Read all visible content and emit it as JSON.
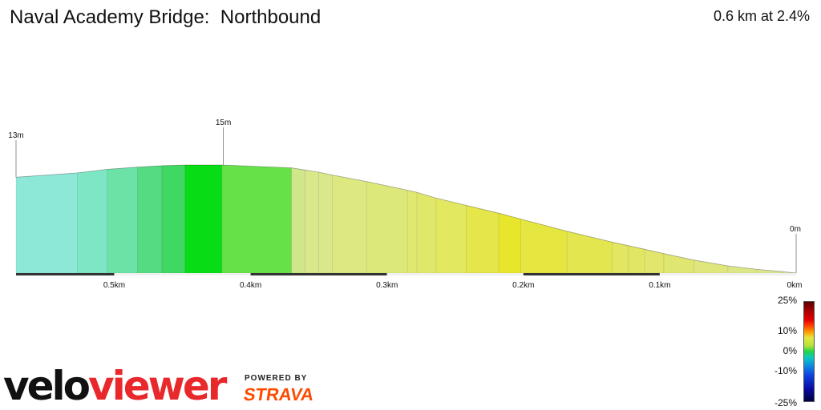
{
  "header": {
    "title": "Naval Academy Bridge:  Northbound",
    "summary": "0.6 km at 2.4%"
  },
  "chart_data": {
    "type": "area",
    "title": "Naval Academy Bridge:  Northbound",
    "xlabel": "",
    "ylabel": "",
    "x_unit": "km",
    "x_reversed": true,
    "xlim": [
      0.572,
      0
    ],
    "x_ticks": [
      "0.5km",
      "0.4km",
      "0.3km",
      "0.2km",
      "0.1km",
      "0km"
    ],
    "x_tick_values": [
      0.5,
      0.4,
      0.3,
      0.2,
      0.1,
      0
    ],
    "elevation_labels": [
      {
        "x": 0.572,
        "text": "13m"
      },
      {
        "x": 0.42,
        "text": "15m"
      },
      {
        "x": 0,
        "text": "0m"
      }
    ],
    "series": [
      {
        "values_note": "elevation (m) along segment, distance remaining in km",
        "points": [
          {
            "x": 0.572,
            "y": 13.3
          },
          {
            "x": 0.527,
            "y": 13.9
          },
          {
            "x": 0.505,
            "y": 14.4
          },
          {
            "x": 0.483,
            "y": 14.7
          },
          {
            "x": 0.465,
            "y": 14.9
          },
          {
            "x": 0.448,
            "y": 15.0
          },
          {
            "x": 0.421,
            "y": 15.0
          },
          {
            "x": 0.37,
            "y": 14.6
          },
          {
            "x": 0.36,
            "y": 14.3
          },
          {
            "x": 0.35,
            "y": 14.0
          },
          {
            "x": 0.34,
            "y": 13.6
          },
          {
            "x": 0.315,
            "y": 12.7
          },
          {
            "x": 0.285,
            "y": 11.5
          },
          {
            "x": 0.278,
            "y": 11.2
          },
          {
            "x": 0.264,
            "y": 10.4
          },
          {
            "x": 0.242,
            "y": 9.4
          },
          {
            "x": 0.218,
            "y": 8.3
          },
          {
            "x": 0.202,
            "y": 7.5
          },
          {
            "x": 0.168,
            "y": 5.8
          },
          {
            "x": 0.135,
            "y": 4.3
          },
          {
            "x": 0.123,
            "y": 3.8
          },
          {
            "x": 0.111,
            "y": 3.3
          },
          {
            "x": 0.097,
            "y": 2.7
          },
          {
            "x": 0.075,
            "y": 1.8
          },
          {
            "x": 0.05,
            "y": 1.0
          },
          {
            "x": 0.028,
            "y": 0.5
          },
          {
            "x": 0.01,
            "y": 0.2
          },
          {
            "x": 0.0,
            "y": 0.0
          }
        ],
        "segment_colors": [
          "#8ee8d8",
          "#7de6c5",
          "#6ce2a6",
          "#55dc82",
          "#3ed862",
          "#08dc15",
          "#66e248",
          "#cfe78a",
          "#d8e88a",
          "#d8e88a",
          "#dde880",
          "#dde87a",
          "#e0e870",
          "#e0e86a",
          "#e2e860",
          "#e4e64a",
          "#e8e62a",
          "#e6e640",
          "#e4e650",
          "#e2e660",
          "#e2e665",
          "#e2e66c",
          "#e0e672",
          "#dfe67c",
          "#dde686",
          "#dde690",
          "#dde69a"
        ]
      }
    ],
    "gradient_legend": {
      "labels": [
        "25%",
        "10%",
        "0%",
        "-10%",
        "-25%"
      ],
      "values": [
        25,
        10,
        0,
        -10,
        -25
      ]
    }
  },
  "branding": {
    "logo_part1": "velo",
    "logo_part2": "viewer",
    "powered_by": "POWERED BY",
    "strava": "STRAVA"
  },
  "colors": {
    "baseline_dark": "#333333",
    "baseline_light": "#f0f0f0",
    "strava_orange": "#fc4c02",
    "veloviewer_red": "#e8282b"
  }
}
